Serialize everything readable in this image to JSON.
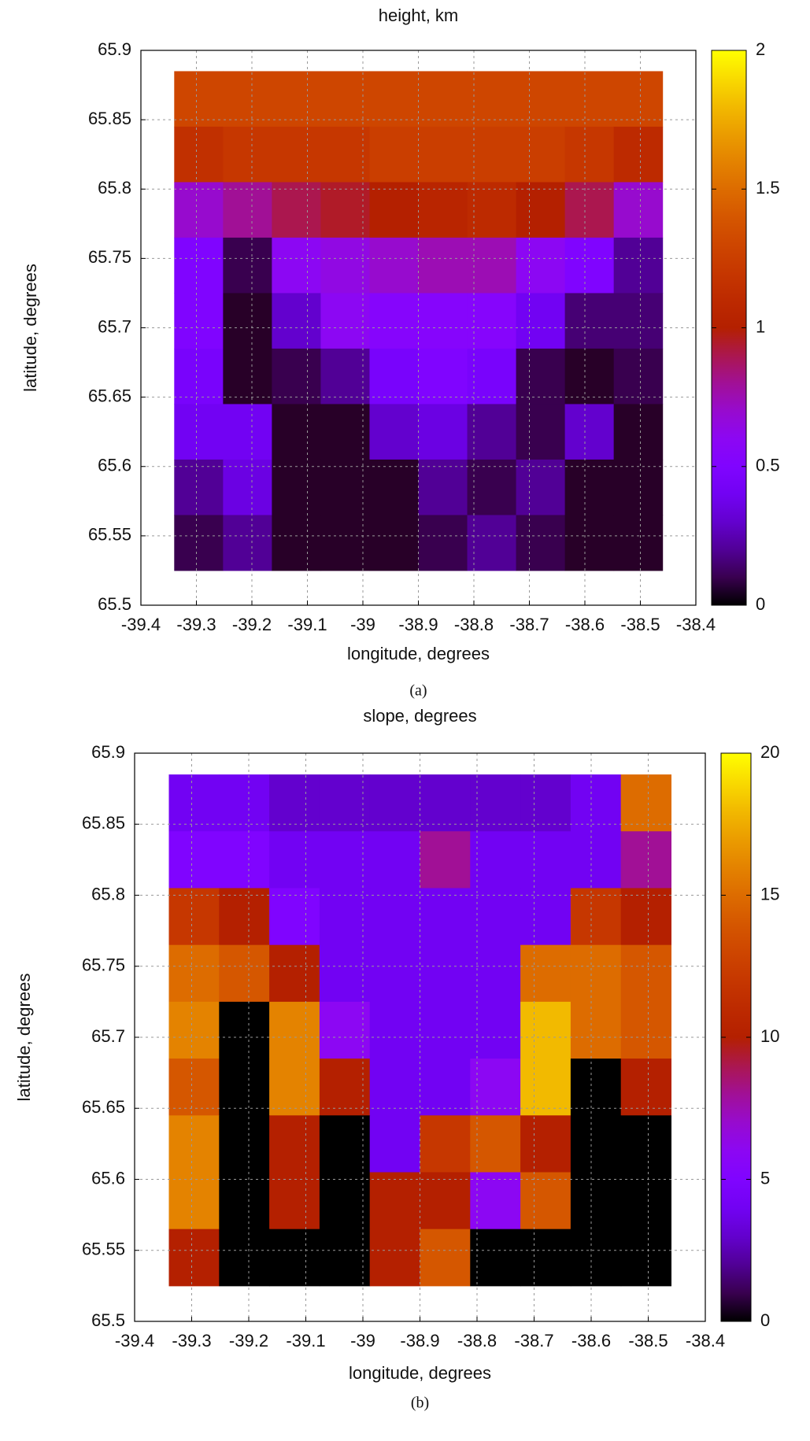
{
  "chart_data": [
    {
      "type": "heatmap",
      "title": "height, km",
      "xlabel": "longitude, degrees",
      "ylabel": "latitude, degrees",
      "caption": "(a)",
      "x": [
        -39.296,
        -39.208,
        -39.12,
        -39.032,
        -38.944,
        -38.856,
        -38.768,
        -38.68,
        -38.592,
        -38.504
      ],
      "y": [
        65.865,
        65.825,
        65.785,
        65.745,
        65.705,
        65.665,
        65.625,
        65.585,
        65.545
      ],
      "z": [
        [
          1.3,
          1.3,
          1.3,
          1.3,
          1.3,
          1.3,
          1.3,
          1.3,
          1.3,
          1.3
        ],
        [
          1.15,
          1.2,
          1.2,
          1.2,
          1.25,
          1.25,
          1.25,
          1.25,
          1.2,
          1.1
        ],
        [
          0.7,
          0.8,
          0.9,
          0.95,
          1.0,
          1.05,
          1.1,
          1.0,
          0.9,
          0.7
        ],
        [
          0.5,
          0.1,
          0.6,
          0.65,
          0.7,
          0.75,
          0.75,
          0.6,
          0.5,
          0.2
        ],
        [
          0.5,
          0.05,
          0.3,
          0.6,
          0.55,
          0.55,
          0.55,
          0.4,
          0.15,
          0.15
        ],
        [
          0.45,
          0.05,
          0.1,
          0.2,
          0.45,
          0.5,
          0.45,
          0.1,
          0.05,
          0.1
        ],
        [
          0.4,
          0.4,
          0.05,
          0.05,
          0.3,
          0.35,
          0.2,
          0.1,
          0.3,
          0.05
        ],
        [
          0.2,
          0.35,
          0.05,
          0.05,
          0.05,
          0.2,
          0.1,
          0.2,
          0.05,
          0.05
        ],
        [
          0.1,
          0.2,
          0.05,
          0.05,
          0.05,
          0.1,
          0.2,
          0.1,
          0.05,
          0.05
        ]
      ],
      "xlim": [
        -39.4,
        -38.4
      ],
      "xticks": [
        -39.4,
        -39.3,
        -39.2,
        -39.1,
        -39,
        -38.9,
        -38.8,
        -38.7,
        -38.6,
        -38.5,
        -38.4
      ],
      "ylim": [
        65.5,
        65.9
      ],
      "yticks": [
        65.5,
        65.55,
        65.6,
        65.65,
        65.7,
        65.75,
        65.8,
        65.85,
        65.9
      ],
      "zlim": [
        0,
        2
      ],
      "zticks": [
        0,
        0.5,
        1,
        1.5,
        2
      ],
      "grid": true
    },
    {
      "type": "heatmap",
      "title": "slope, degrees",
      "xlabel": "longitude, degrees",
      "ylabel": "latitude, degrees",
      "caption": "(b)",
      "x": [
        -39.296,
        -39.208,
        -39.12,
        -39.032,
        -38.944,
        -38.856,
        -38.768,
        -38.68,
        -38.592,
        -38.504
      ],
      "y": [
        65.865,
        65.825,
        65.785,
        65.745,
        65.705,
        65.665,
        65.625,
        65.585,
        65.545
      ],
      "z": [
        [
          4,
          4,
          3,
          3,
          3,
          3,
          3,
          3,
          4,
          15
        ],
        [
          5,
          5,
          4,
          4,
          4,
          8,
          4,
          4,
          4,
          8
        ],
        [
          12,
          10,
          5,
          4,
          4,
          4,
          4,
          4,
          12,
          10
        ],
        [
          15,
          14,
          10,
          4,
          4,
          4,
          4,
          15,
          15,
          14
        ],
        [
          16,
          0,
          16,
          6,
          4,
          4,
          4,
          18,
          15,
          14
        ],
        [
          14,
          0,
          16,
          10,
          4,
          4,
          6,
          18,
          0,
          10
        ],
        [
          16,
          0,
          10,
          0,
          4,
          12,
          14,
          10,
          0,
          0
        ],
        [
          16,
          0,
          10,
          0,
          10,
          10,
          6,
          14,
          0,
          0
        ],
        [
          10,
          0,
          0,
          0,
          10,
          14,
          0,
          0,
          0,
          0
        ]
      ],
      "xlim": [
        -39.4,
        -38.4
      ],
      "xticks": [
        -39.4,
        -39.3,
        -39.2,
        -39.1,
        -39,
        -38.9,
        -38.8,
        -38.7,
        -38.6,
        -38.5,
        -38.4
      ],
      "ylim": [
        65.5,
        65.9
      ],
      "yticks": [
        65.5,
        65.55,
        65.6,
        65.65,
        65.7,
        65.75,
        65.8,
        65.85,
        65.9
      ],
      "zlim": [
        0,
        20
      ],
      "zticks": [
        0,
        5,
        10,
        15,
        20
      ],
      "grid": true
    }
  ]
}
